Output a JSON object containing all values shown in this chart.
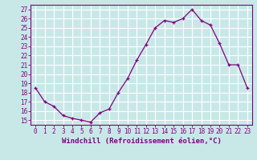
{
  "x": [
    0,
    1,
    2,
    3,
    4,
    5,
    6,
    7,
    8,
    9,
    10,
    11,
    12,
    13,
    14,
    15,
    16,
    17,
    18,
    19,
    20,
    21,
    22,
    23
  ],
  "y": [
    18.5,
    17.0,
    16.5,
    15.5,
    15.2,
    15.0,
    14.8,
    15.8,
    16.2,
    18.0,
    19.5,
    21.5,
    23.2,
    25.0,
    25.8,
    25.6,
    26.0,
    27.0,
    25.8,
    25.3,
    23.3,
    21.0,
    21.0,
    18.5
  ],
  "line_color": "#800080",
  "marker": "+",
  "bg_color": "#c8e8e8",
  "grid_color": "#ffffff",
  "xlabel": "Windchill (Refroidissement éolien,°C)",
  "xlim": [
    -0.5,
    23.5
  ],
  "ylim": [
    14.5,
    27.5
  ],
  "xticks": [
    0,
    1,
    2,
    3,
    4,
    5,
    6,
    7,
    8,
    9,
    10,
    11,
    12,
    13,
    14,
    15,
    16,
    17,
    18,
    19,
    20,
    21,
    22,
    23
  ],
  "yticks": [
    15,
    16,
    17,
    18,
    19,
    20,
    21,
    22,
    23,
    24,
    25,
    26,
    27
  ],
  "tick_color": "#800080",
  "tick_fontsize": 5.5,
  "xlabel_fontsize": 6.5,
  "label_color": "#800080",
  "spine_color": "#800080"
}
